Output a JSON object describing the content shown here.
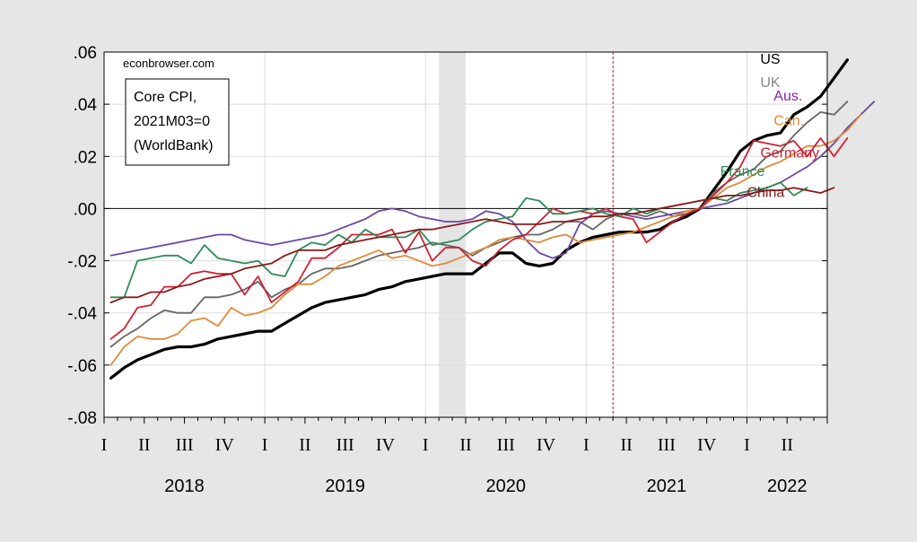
{
  "chart_data": {
    "type": "line",
    "source_note": "econbrowser.com",
    "note_lines": [
      "Core CPI,",
      "2021M03=0",
      "(WorldBank)"
    ],
    "x_start": "2018-01",
    "x_end": "2022-06",
    "ylim": [
      -0.08,
      0.06
    ],
    "y_ticks": [
      0.06,
      0.04,
      0.02,
      0.0,
      -0.02,
      -0.04,
      -0.06,
      -0.08
    ],
    "y_tick_labels": [
      ".06",
      ".04",
      ".02",
      ".00",
      "-.02",
      "-.04",
      "-.06",
      "-.08"
    ],
    "quarter_ticks": [
      {
        "label": "I",
        "month": "2018-01"
      },
      {
        "label": "II",
        "month": "2018-04"
      },
      {
        "label": "III",
        "month": "2018-07"
      },
      {
        "label": "IV",
        "month": "2018-10"
      },
      {
        "label": "I",
        "month": "2019-01"
      },
      {
        "label": "II",
        "month": "2019-04"
      },
      {
        "label": "III",
        "month": "2019-07"
      },
      {
        "label": "IV",
        "month": "2019-10"
      },
      {
        "label": "I",
        "month": "2020-01"
      },
      {
        "label": "II",
        "month": "2020-04"
      },
      {
        "label": "III",
        "month": "2020-07"
      },
      {
        "label": "IV",
        "month": "2020-10"
      },
      {
        "label": "I",
        "month": "2021-01"
      },
      {
        "label": "II",
        "month": "2021-04"
      },
      {
        "label": "III",
        "month": "2021-07"
      },
      {
        "label": "IV",
        "month": "2021-10"
      },
      {
        "label": "I",
        "month": "2022-01"
      },
      {
        "label": "II",
        "month": "2022-04"
      }
    ],
    "year_labels": [
      {
        "label": "2018",
        "month": "2018-07"
      },
      {
        "label": "2019",
        "month": "2019-07"
      },
      {
        "label": "2020",
        "month": "2020-07"
      },
      {
        "label": "2021",
        "month": "2021-07"
      },
      {
        "label": "2022",
        "month": "2022-04"
      }
    ],
    "recession_shade": {
      "start": "2020-02",
      "end": "2020-04",
      "color": "#e4e4e4"
    },
    "reference_line": {
      "month": "2021-03",
      "color": "#aa2222"
    },
    "grid": true,
    "series": [
      {
        "name": "US",
        "color": "#000000",
        "width": 3.2,
        "label_month": "2022-02",
        "label_value": 0.0555,
        "label_color": "#000000",
        "values": [
          -0.065,
          -0.061,
          -0.058,
          -0.056,
          -0.054,
          -0.053,
          -0.053,
          -0.052,
          -0.05,
          -0.049,
          -0.048,
          -0.047,
          -0.047,
          -0.044,
          -0.041,
          -0.038,
          -0.036,
          -0.035,
          -0.034,
          -0.033,
          -0.031,
          -0.03,
          -0.028,
          -0.027,
          -0.026,
          -0.025,
          -0.025,
          -0.025,
          -0.021,
          -0.017,
          -0.017,
          -0.021,
          -0.022,
          -0.021,
          -0.016,
          -0.013,
          -0.011,
          -0.01,
          -0.009,
          -0.009,
          -0.009,
          -0.008,
          -0.005,
          -0.003,
          0.0,
          0.007,
          0.014,
          0.022,
          0.026,
          0.028,
          0.029,
          0.036,
          0.039,
          0.043,
          0.05,
          0.057
        ]
      },
      {
        "name": "UK",
        "color": "#666666",
        "width": 1.8,
        "label_month": "2022-02",
        "label_value": 0.0465,
        "label_color": "#888888",
        "values": [
          -0.053,
          -0.049,
          -0.046,
          -0.042,
          -0.039,
          -0.04,
          -0.04,
          -0.034,
          -0.034,
          -0.033,
          -0.031,
          -0.028,
          -0.034,
          -0.031,
          -0.029,
          -0.025,
          -0.023,
          -0.023,
          -0.022,
          -0.02,
          -0.018,
          -0.017,
          -0.016,
          -0.015,
          -0.013,
          -0.014,
          -0.015,
          -0.018,
          -0.015,
          -0.013,
          -0.011,
          -0.01,
          -0.01,
          -0.008,
          -0.005,
          -0.005,
          -0.008,
          -0.004,
          -0.002,
          -0.002,
          -0.003,
          -0.001,
          -0.003,
          -0.002,
          0.0,
          0.006,
          0.01,
          0.013,
          0.015,
          0.02,
          0.022,
          0.028,
          0.033,
          0.037,
          0.036,
          0.041
        ]
      },
      {
        "name": "Aus.",
        "color": "#6a4aa2",
        "width": 1.8,
        "label_month": "2022-03",
        "label_value": 0.0415,
        "label_color": "#8822aa",
        "values": [
          -0.018,
          -0.017,
          -0.016,
          -0.015,
          -0.014,
          -0.013,
          -0.012,
          -0.011,
          -0.01,
          -0.01,
          -0.012,
          -0.013,
          -0.014,
          -0.013,
          -0.012,
          -0.011,
          -0.01,
          -0.008,
          -0.006,
          -0.004,
          -0.001,
          0.0,
          -0.001,
          -0.003,
          -0.004,
          -0.005,
          -0.005,
          -0.004,
          -0.001,
          -0.002,
          -0.005,
          -0.012,
          -0.017,
          -0.019,
          -0.017,
          -0.006,
          -0.002,
          -0.001,
          -0.002,
          -0.003,
          -0.004,
          -0.003,
          -0.002,
          -0.001,
          0.0,
          0.001,
          0.002,
          0.004,
          0.006,
          0.008,
          0.01,
          0.013,
          0.016,
          0.02,
          0.025,
          0.031,
          0.036,
          0.041
        ]
      },
      {
        "name": "Can.",
        "color": "#e08a38",
        "width": 1.8,
        "label_month": "2022-03",
        "label_value": 0.032,
        "label_color": "#e08a38",
        "values": [
          -0.06,
          -0.053,
          -0.049,
          -0.05,
          -0.05,
          -0.048,
          -0.043,
          -0.042,
          -0.045,
          -0.038,
          -0.041,
          -0.04,
          -0.038,
          -0.033,
          -0.029,
          -0.029,
          -0.026,
          -0.022,
          -0.02,
          -0.018,
          -0.016,
          -0.019,
          -0.018,
          -0.02,
          -0.022,
          -0.021,
          -0.019,
          -0.017,
          -0.015,
          -0.012,
          -0.011,
          -0.012,
          -0.013,
          -0.011,
          -0.01,
          -0.013,
          -0.012,
          -0.011,
          -0.01,
          -0.009,
          -0.007,
          -0.005,
          -0.003,
          -0.001,
          0.0,
          0.004,
          0.008,
          0.01,
          0.013,
          0.016,
          0.018,
          0.021,
          0.024,
          0.024,
          0.026,
          0.03,
          0.036
        ]
      },
      {
        "name": "Germany",
        "color": "#cc2233",
        "width": 1.8,
        "label_month": "2022-02",
        "label_value": 0.0195,
        "label_color": "#cc2233",
        "values": [
          -0.05,
          -0.046,
          -0.038,
          -0.037,
          -0.03,
          -0.03,
          -0.025,
          -0.024,
          -0.025,
          -0.025,
          -0.033,
          -0.026,
          -0.036,
          -0.032,
          -0.028,
          -0.019,
          -0.019,
          -0.015,
          -0.01,
          -0.01,
          -0.01,
          -0.008,
          -0.017,
          -0.009,
          -0.02,
          -0.015,
          -0.015,
          -0.02,
          -0.022,
          -0.016,
          -0.012,
          -0.01,
          -0.005,
          0.0,
          -0.002,
          -0.001,
          -0.002,
          0.0,
          -0.003,
          -0.004,
          -0.013,
          -0.009,
          -0.005,
          -0.002,
          0.0,
          0.005,
          0.01,
          0.016,
          0.026,
          0.025,
          0.024,
          0.026,
          0.02,
          0.027,
          0.02,
          0.027
        ]
      },
      {
        "name": "France",
        "color": "#2e8b57",
        "width": 1.8,
        "label_month": "2021-11",
        "label_value": 0.0125,
        "label_color": "#2e8b57",
        "values": [
          -0.034,
          -0.034,
          -0.02,
          -0.019,
          -0.018,
          -0.018,
          -0.021,
          -0.014,
          -0.019,
          -0.02,
          -0.021,
          -0.02,
          -0.025,
          -0.026,
          -0.016,
          -0.013,
          -0.014,
          -0.01,
          -0.013,
          -0.008,
          -0.011,
          -0.011,
          -0.011,
          -0.008,
          -0.014,
          -0.013,
          -0.012,
          -0.008,
          -0.005,
          -0.004,
          -0.003,
          0.004,
          0.003,
          -0.002,
          -0.002,
          -0.001,
          0.0,
          -0.002,
          -0.003,
          0.0,
          -0.002,
          0.0,
          0.001,
          0.002,
          0.003,
          0.004,
          0.003,
          0.006,
          0.007,
          0.008,
          0.01,
          0.005,
          0.008
        ]
      },
      {
        "name": "China",
        "color": "#8b1a1a",
        "width": 1.8,
        "label_month": "2022-01",
        "label_value": 0.0045,
        "label_color": "#7a1a1a",
        "values": [
          -0.036,
          -0.034,
          -0.034,
          -0.032,
          -0.032,
          -0.03,
          -0.029,
          -0.027,
          -0.026,
          -0.025,
          -0.023,
          -0.022,
          -0.021,
          -0.018,
          -0.016,
          -0.016,
          -0.016,
          -0.014,
          -0.013,
          -0.012,
          -0.011,
          -0.01,
          -0.009,
          -0.008,
          -0.008,
          -0.007,
          -0.006,
          -0.005,
          -0.004,
          -0.005,
          -0.006,
          -0.006,
          -0.006,
          -0.005,
          -0.005,
          -0.004,
          -0.003,
          -0.003,
          -0.002,
          -0.002,
          -0.001,
          0.0,
          0.001,
          0.002,
          0.003,
          0.004,
          0.005,
          0.005,
          0.006,
          0.007,
          0.007,
          0.008,
          0.007,
          0.006,
          0.008
        ]
      }
    ]
  }
}
